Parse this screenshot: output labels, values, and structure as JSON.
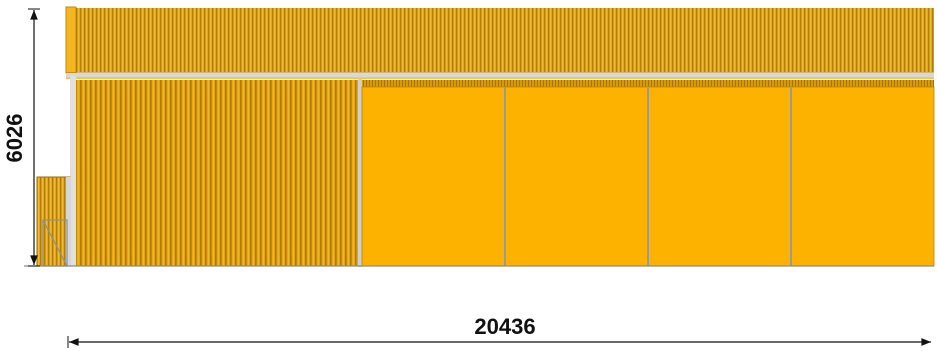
{
  "dimensions": {
    "height_label": "6026",
    "width_label": "20436"
  },
  "elevation": {
    "door_panel_count": 4,
    "colors": {
      "cladding": "#E4A50C",
      "cladding_rib": "#B67F06",
      "door_panel": "#FDB200",
      "frame": "#C9C9C9",
      "dimension_line": "#111111"
    }
  }
}
